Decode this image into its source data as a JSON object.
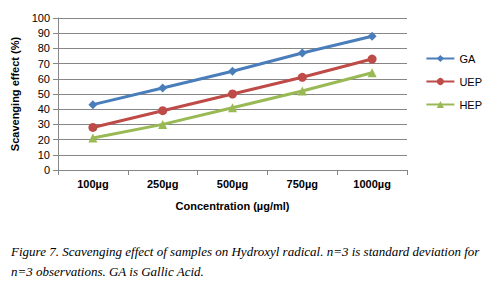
{
  "chart_data": {
    "type": "line",
    "caption": "Figure 7. Scavenging effect of samples on Hydroxyl radical. n=3 is standard deviation for n=3 observations. GA is Gallic Acid.",
    "x_label": "Concentration (µg/ml)",
    "y_label": "Scavenging effect (%)",
    "categories": [
      "100µg",
      "250µg",
      "500µg",
      "750µg",
      "1000µg"
    ],
    "series": [
      {
        "name": "GA",
        "color": "#4a7ebb",
        "marker": "diamond",
        "values": [
          43,
          54,
          65,
          77,
          88
        ]
      },
      {
        "name": "UEP",
        "color": "#be4b48",
        "marker": "circle",
        "values": [
          28,
          39,
          50,
          61,
          73
        ]
      },
      {
        "name": "HEP",
        "color": "#98b954",
        "marker": "triangle",
        "values": [
          21,
          30,
          41,
          52,
          64
        ]
      }
    ],
    "ylim": [
      0,
      100
    ],
    "yticks": [
      0,
      10,
      20,
      30,
      40,
      50,
      60,
      70,
      80,
      90,
      100
    ],
    "grid": true,
    "legend": "right"
  }
}
